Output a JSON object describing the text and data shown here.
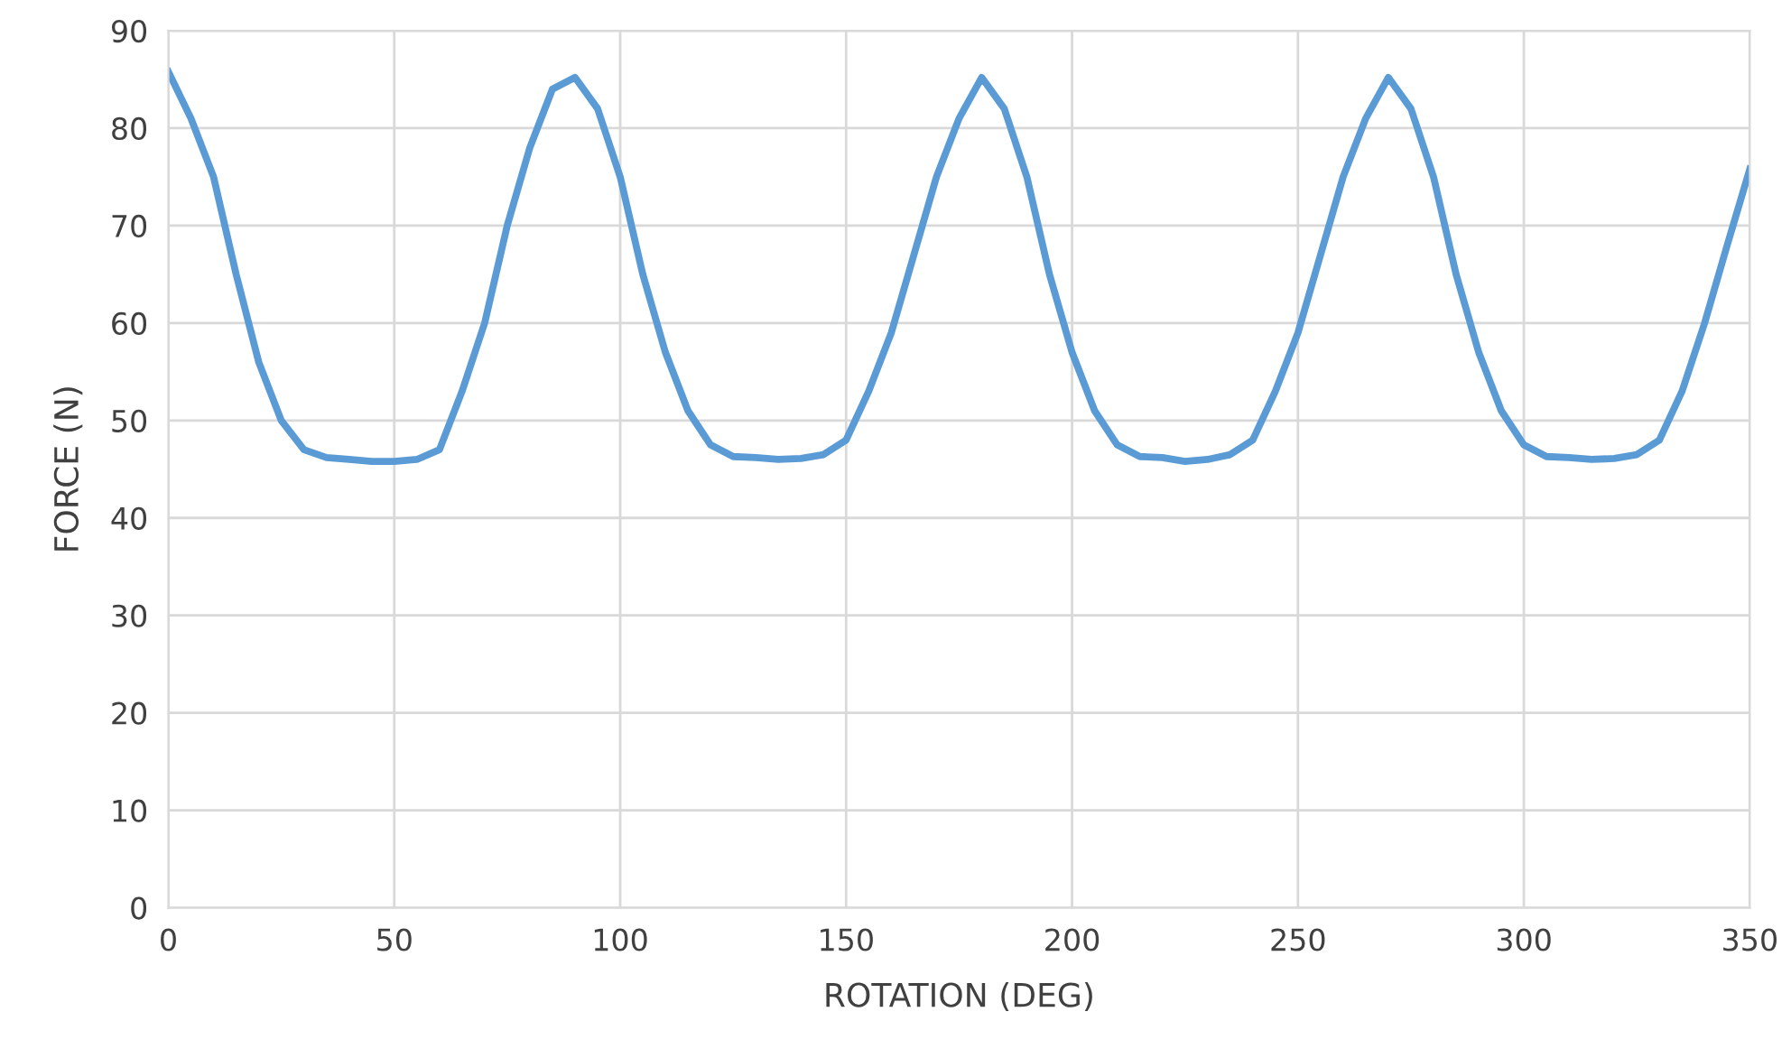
{
  "chart_data": {
    "type": "line",
    "xlabel": "ROTATION (DEG)",
    "ylabel": "FORCE (N)",
    "x": [
      0,
      5,
      10,
      15,
      20,
      25,
      30,
      35,
      40,
      45,
      50,
      55,
      60,
      65,
      70,
      75,
      80,
      85,
      90,
      95,
      100,
      105,
      110,
      115,
      120,
      125,
      130,
      135,
      140,
      145,
      150,
      155,
      160,
      165,
      170,
      175,
      180,
      185,
      190,
      195,
      200,
      205,
      210,
      215,
      220,
      225,
      230,
      235,
      240,
      245,
      250,
      255,
      260,
      265,
      270,
      275,
      280,
      285,
      290,
      295,
      300,
      305,
      310,
      315,
      320,
      325,
      330,
      335,
      340,
      345,
      350
    ],
    "series": [
      {
        "color": "#5b9bd5",
        "values": [
          85.8,
          81,
          75,
          65,
          56,
          50,
          47,
          46.2,
          46,
          45.8,
          45.8,
          46,
          47,
          53,
          60,
          70,
          78,
          84,
          85.2,
          82,
          75,
          65,
          57,
          51,
          47.5,
          46.3,
          46.2,
          46,
          46.1,
          46.5,
          48,
          53,
          59,
          67,
          75,
          81,
          85.2,
          82,
          75,
          65,
          57,
          51,
          47.5,
          46.3,
          46.2,
          45.8,
          46,
          46.5,
          48,
          53,
          59,
          67,
          75,
          81,
          85.2,
          82,
          75,
          65,
          57,
          51,
          47.5,
          46.3,
          46.2,
          46,
          46.1,
          46.5,
          48,
          53,
          60,
          68,
          75.8
        ]
      }
    ],
    "xlim": [
      0,
      350
    ],
    "ylim": [
      0,
      90
    ],
    "xticks": [
      0,
      50,
      100,
      150,
      200,
      250,
      300,
      350
    ],
    "yticks": [
      0,
      10,
      20,
      30,
      40,
      50,
      60,
      70,
      80,
      90
    ],
    "grid": true,
    "marker": "none",
    "line_style": "solid",
    "legend": false
  }
}
